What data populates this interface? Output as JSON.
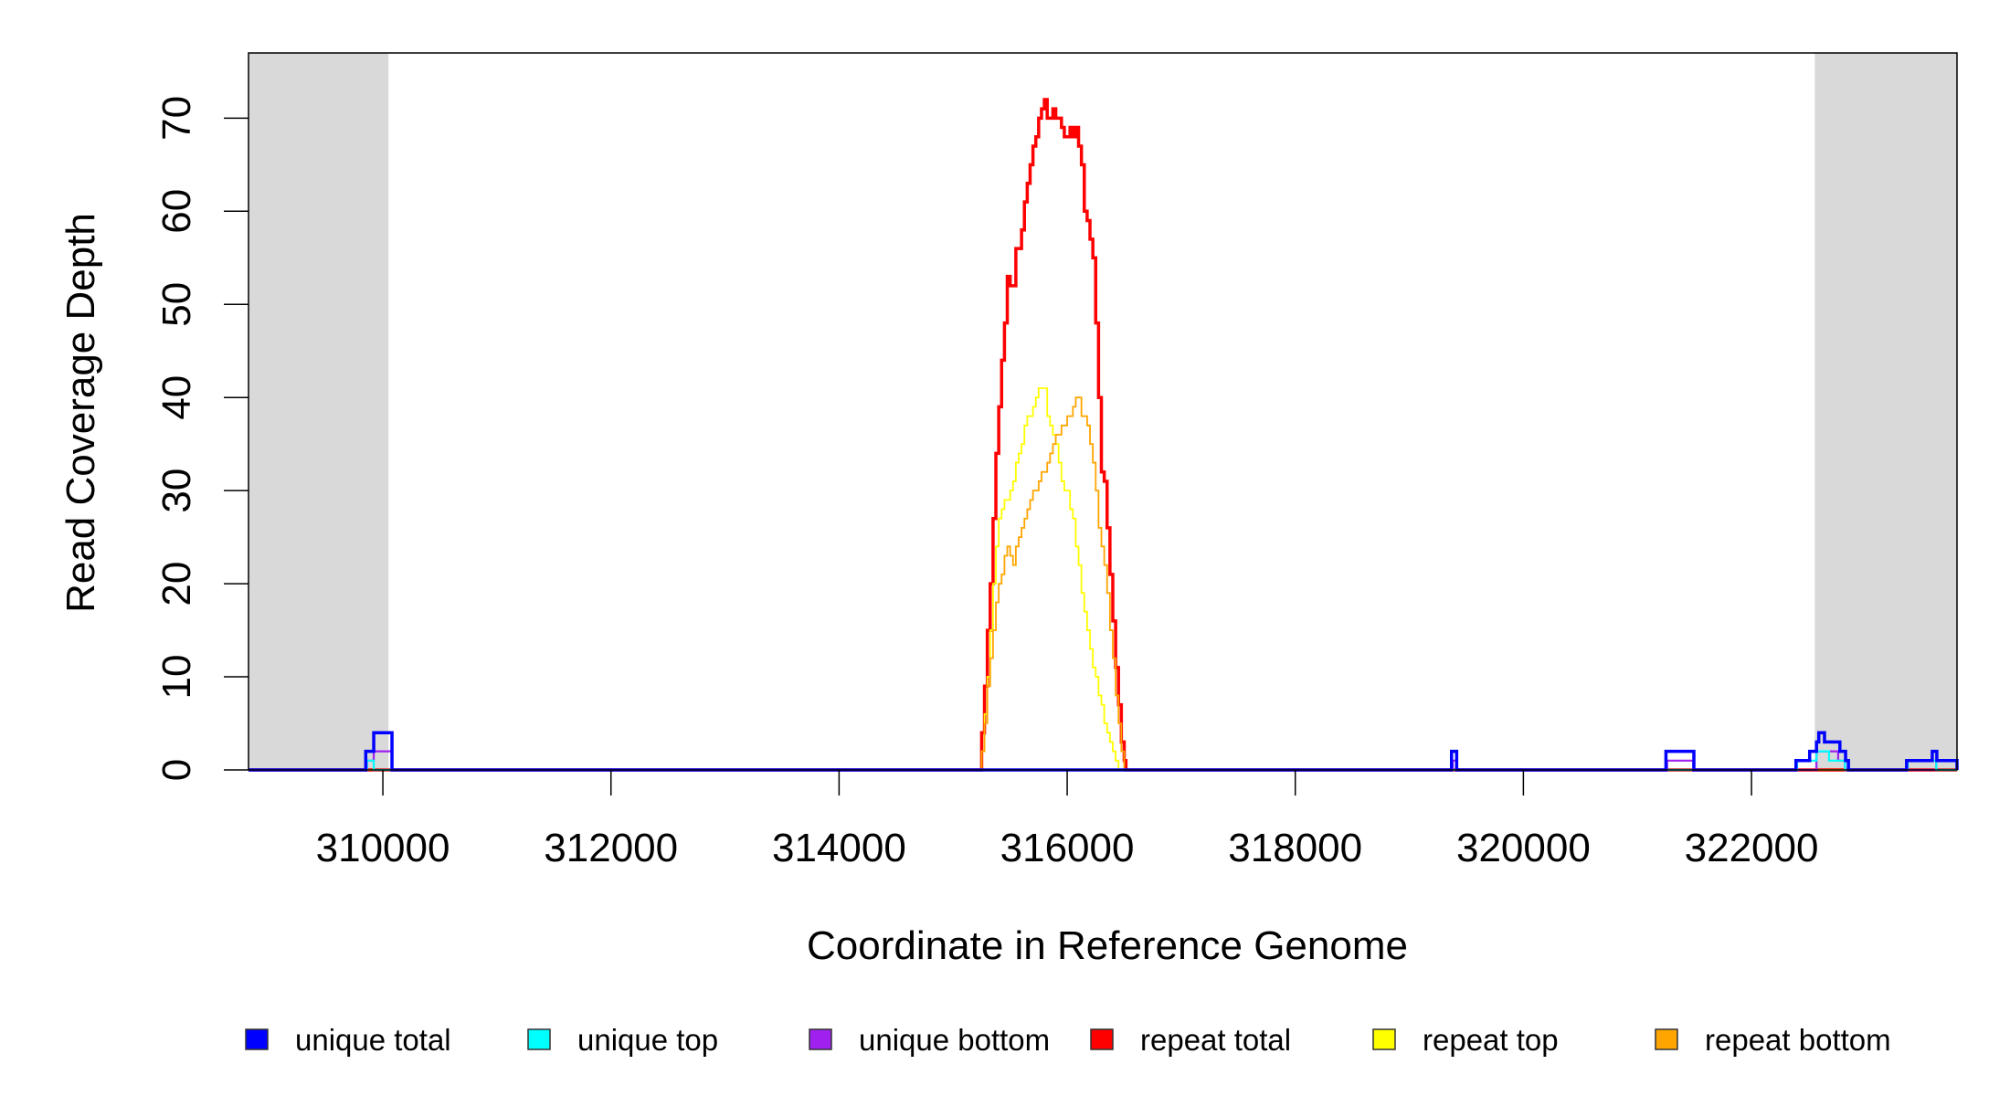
{
  "chart_data": {
    "type": "line",
    "title": "",
    "xlabel": "Coordinate in Reference Genome",
    "ylabel": "Read Coverage Depth",
    "xlim": [
      308822,
      323802
    ],
    "ylim": [
      0,
      77
    ],
    "x_ticks": [
      310000,
      312000,
      314000,
      316000,
      318000,
      320000,
      322000
    ],
    "x_tick_labels": [
      "310000",
      "312000",
      "314000",
      "316000",
      "318000",
      "320000",
      "322000"
    ],
    "y_ticks": [
      0,
      10,
      20,
      30,
      40,
      50,
      60,
      70
    ],
    "y_tick_labels": [
      "0",
      "10",
      "20",
      "30",
      "40",
      "50",
      "60",
      "70"
    ],
    "grid": false,
    "legend_placement": "bottom",
    "shaded_regions": [
      {
        "x": [
          308822,
          310050
        ],
        "color": "#d9d9d9"
      },
      {
        "x": [
          322555,
          323802
        ],
        "color": "#d9d9d9"
      }
    ],
    "series": [
      {
        "name": "repeat total",
        "color": "#ff0000",
        "bins": {
          "start": 315250,
          "width": 25,
          "values": [
            4,
            9,
            15,
            20,
            27,
            34,
            39,
            44,
            48,
            53,
            52,
            52,
            56,
            56,
            58,
            61,
            63,
            65,
            67,
            68,
            70,
            71,
            72,
            70,
            70,
            71,
            70,
            70,
            69,
            68,
            68,
            69,
            68,
            69,
            67,
            65,
            60,
            59,
            57,
            55,
            48,
            40,
            32,
            31,
            26,
            21,
            16,
            11,
            7,
            3
          ]
        },
        "steps": [
          [
            316500,
            316515,
            1
          ]
        ]
      },
      {
        "name": "repeat top",
        "color": "#ffff00",
        "bins": {
          "start": 315250,
          "width": 25,
          "values": [
            2,
            6,
            10,
            15,
            20,
            24,
            27,
            28,
            29,
            29,
            30,
            31,
            33,
            34,
            35,
            37,
            38,
            38,
            39,
            40,
            41,
            41,
            41,
            38,
            37,
            36,
            35,
            33,
            31,
            30,
            30,
            28,
            27,
            24,
            22,
            19,
            17,
            15,
            13,
            11,
            10,
            8,
            7,
            5,
            4,
            3,
            2,
            1,
            0,
            0
          ]
        },
        "steps": []
      },
      {
        "name": "repeat bottom",
        "color": "#ffa500",
        "bins": {
          "start": 315250,
          "width": 25,
          "values": [
            2,
            5,
            9,
            12,
            15,
            18,
            20,
            21,
            23,
            24,
            23,
            22,
            24,
            25,
            26,
            27,
            28,
            29,
            30,
            30,
            31,
            32,
            32,
            33,
            34,
            35,
            36,
            36,
            37,
            37,
            38,
            38,
            39,
            40,
            40,
            38,
            38,
            37,
            35,
            33,
            30,
            26,
            24,
            22,
            19,
            15,
            12,
            8,
            5,
            2
          ]
        },
        "steps": []
      },
      {
        "name": "unique bottom",
        "color": "#a020f0",
        "steps": [
          [
            309860,
            309920,
            1
          ],
          [
            309920,
            310080,
            2
          ],
          [
            319380,
            319410,
            1
          ],
          [
            321260,
            321490,
            1
          ],
          [
            322570,
            322760,
            2
          ],
          [
            322760,
            322820,
            1
          ],
          [
            323620,
            323802,
            1
          ]
        ]
      },
      {
        "name": "unique top",
        "color": "#00ffff",
        "steps": [
          [
            309860,
            309920,
            1
          ],
          [
            322400,
            322570,
            1
          ],
          [
            322570,
            322680,
            2
          ],
          [
            322680,
            322820,
            1
          ],
          [
            323370,
            323620,
            1
          ]
        ]
      },
      {
        "name": "unique total",
        "color": "#0000ff",
        "steps": [
          [
            309850,
            309920,
            2
          ],
          [
            309920,
            310080,
            4
          ],
          [
            319370,
            319415,
            2
          ],
          [
            321250,
            321495,
            2
          ],
          [
            322390,
            322510,
            1
          ],
          [
            322510,
            322570,
            2
          ],
          [
            322570,
            322590,
            3
          ],
          [
            322590,
            322640,
            4
          ],
          [
            322640,
            322775,
            3
          ],
          [
            322775,
            322825,
            2
          ],
          [
            322825,
            322850,
            1
          ],
          [
            323360,
            323585,
            1
          ],
          [
            323585,
            323625,
            2
          ],
          [
            323625,
            323802,
            1
          ]
        ]
      }
    ],
    "legend": [
      {
        "label": "unique total",
        "color": "#0000ff"
      },
      {
        "label": "unique top",
        "color": "#00ffff"
      },
      {
        "label": "unique bottom",
        "color": "#a020f0"
      },
      {
        "label": "repeat total",
        "color": "#ff0000"
      },
      {
        "label": "repeat top",
        "color": "#ffff00"
      },
      {
        "label": "repeat bottom",
        "color": "#ffa500"
      }
    ]
  }
}
